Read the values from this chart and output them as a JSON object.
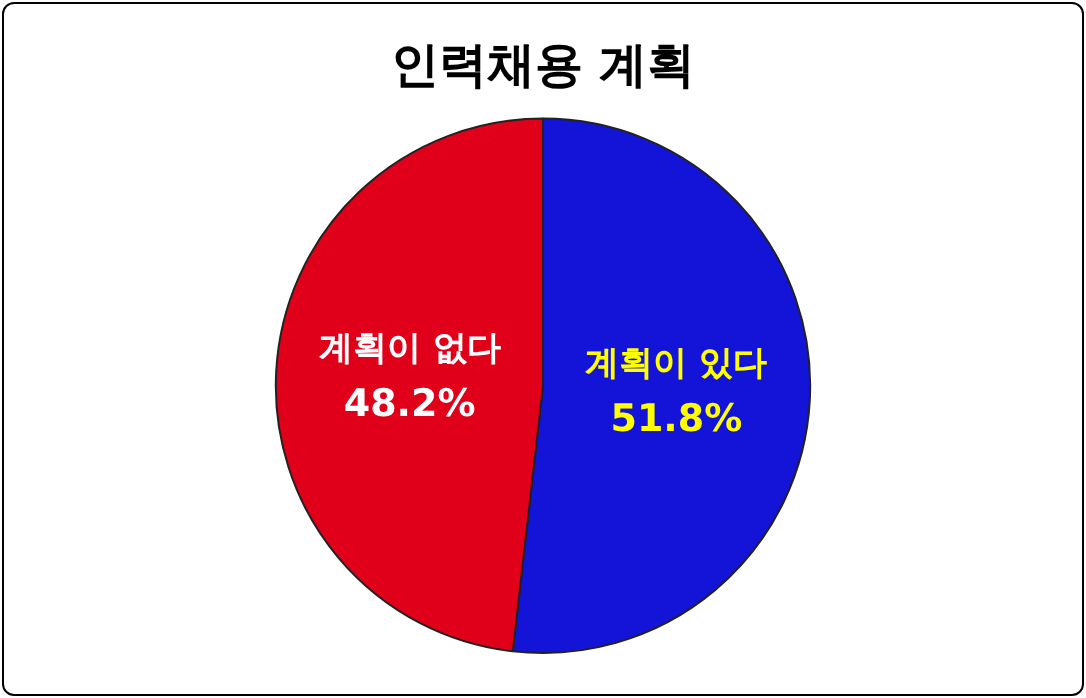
{
  "chart_data": {
    "type": "pie",
    "title": "인력채용 계획",
    "categories": [
      "계획이 있다",
      "계획이 없다"
    ],
    "values": [
      51.8,
      48.2
    ],
    "colors": [
      "#1414d8",
      "#e0001a"
    ],
    "value_labels": [
      "51.8%",
      "48.2%"
    ],
    "legend": false
  }
}
